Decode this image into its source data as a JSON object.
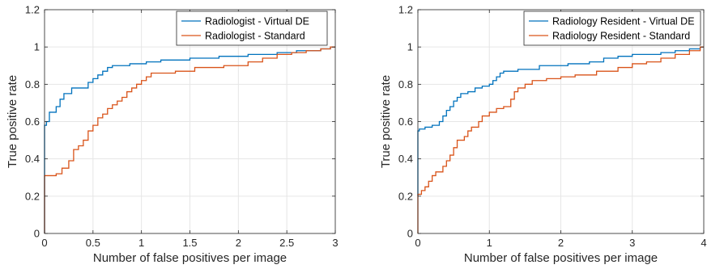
{
  "chart_data": [
    {
      "type": "line",
      "title": "",
      "xlabel": "Number of false positives per image",
      "ylabel": "True positive rate",
      "xlim": [
        0,
        3
      ],
      "ylim": [
        0,
        1.2
      ],
      "xticks": [
        "0",
        "0.5",
        "1",
        "1.5",
        "2",
        "2.5",
        "3"
      ],
      "yticks": [
        "0",
        "0.2",
        "0.4",
        "0.6",
        "0.8",
        "1",
        "1.2"
      ],
      "grid": true,
      "legend_position": "top-right",
      "series": [
        {
          "name": "Radiologist - Virtual DE",
          "color": "#0072BD",
          "points": [
            [
              0,
              0
            ],
            [
              0,
              0.58
            ],
            [
              0.02,
              0.58
            ],
            [
              0.02,
              0.6
            ],
            [
              0.05,
              0.6
            ],
            [
              0.05,
              0.65
            ],
            [
              0.12,
              0.65
            ],
            [
              0.12,
              0.68
            ],
            [
              0.16,
              0.68
            ],
            [
              0.16,
              0.72
            ],
            [
              0.2,
              0.72
            ],
            [
              0.2,
              0.75
            ],
            [
              0.28,
              0.75
            ],
            [
              0.28,
              0.78
            ],
            [
              0.45,
              0.78
            ],
            [
              0.45,
              0.81
            ],
            [
              0.5,
              0.81
            ],
            [
              0.5,
              0.83
            ],
            [
              0.55,
              0.83
            ],
            [
              0.55,
              0.85
            ],
            [
              0.6,
              0.85
            ],
            [
              0.6,
              0.87
            ],
            [
              0.65,
              0.87
            ],
            [
              0.65,
              0.89
            ],
            [
              0.7,
              0.89
            ],
            [
              0.7,
              0.9
            ],
            [
              0.88,
              0.9
            ],
            [
              0.88,
              0.91
            ],
            [
              1.05,
              0.91
            ],
            [
              1.05,
              0.92
            ],
            [
              1.2,
              0.92
            ],
            [
              1.2,
              0.93
            ],
            [
              1.5,
              0.93
            ],
            [
              1.5,
              0.94
            ],
            [
              1.8,
              0.94
            ],
            [
              1.8,
              0.95
            ],
            [
              2.1,
              0.95
            ],
            [
              2.1,
              0.96
            ],
            [
              2.4,
              0.96
            ],
            [
              2.4,
              0.97
            ],
            [
              2.6,
              0.97
            ],
            [
              2.6,
              0.98
            ],
            [
              2.85,
              0.98
            ],
            [
              2.85,
              0.99
            ],
            [
              2.95,
              0.99
            ],
            [
              2.95,
              1.0
            ],
            [
              3.0,
              1.0
            ]
          ]
        },
        {
          "name": "Radiologist - Standard",
          "color": "#D95319",
          "points": [
            [
              0,
              0
            ],
            [
              0,
              0.31
            ],
            [
              0.12,
              0.31
            ],
            [
              0.12,
              0.32
            ],
            [
              0.18,
              0.32
            ],
            [
              0.18,
              0.35
            ],
            [
              0.25,
              0.35
            ],
            [
              0.25,
              0.39
            ],
            [
              0.3,
              0.39
            ],
            [
              0.3,
              0.45
            ],
            [
              0.35,
              0.45
            ],
            [
              0.35,
              0.47
            ],
            [
              0.4,
              0.47
            ],
            [
              0.4,
              0.5
            ],
            [
              0.45,
              0.5
            ],
            [
              0.45,
              0.55
            ],
            [
              0.5,
              0.55
            ],
            [
              0.5,
              0.58
            ],
            [
              0.55,
              0.58
            ],
            [
              0.55,
              0.62
            ],
            [
              0.6,
              0.62
            ],
            [
              0.6,
              0.64
            ],
            [
              0.65,
              0.64
            ],
            [
              0.65,
              0.67
            ],
            [
              0.7,
              0.67
            ],
            [
              0.7,
              0.69
            ],
            [
              0.75,
              0.69
            ],
            [
              0.75,
              0.71
            ],
            [
              0.8,
              0.71
            ],
            [
              0.8,
              0.73
            ],
            [
              0.85,
              0.73
            ],
            [
              0.85,
              0.76
            ],
            [
              0.9,
              0.76
            ],
            [
              0.9,
              0.78
            ],
            [
              0.95,
              0.78
            ],
            [
              0.95,
              0.8
            ],
            [
              1.0,
              0.8
            ],
            [
              1.0,
              0.82
            ],
            [
              1.05,
              0.82
            ],
            [
              1.05,
              0.84
            ],
            [
              1.1,
              0.84
            ],
            [
              1.1,
              0.86
            ],
            [
              1.35,
              0.86
            ],
            [
              1.35,
              0.87
            ],
            [
              1.55,
              0.87
            ],
            [
              1.55,
              0.89
            ],
            [
              1.85,
              0.89
            ],
            [
              1.85,
              0.9
            ],
            [
              2.1,
              0.9
            ],
            [
              2.1,
              0.92
            ],
            [
              2.25,
              0.92
            ],
            [
              2.25,
              0.94
            ],
            [
              2.4,
              0.94
            ],
            [
              2.4,
              0.96
            ],
            [
              2.55,
              0.96
            ],
            [
              2.55,
              0.97
            ],
            [
              2.7,
              0.97
            ],
            [
              2.7,
              0.98
            ],
            [
              2.85,
              0.98
            ],
            [
              2.85,
              0.99
            ],
            [
              2.95,
              0.99
            ],
            [
              2.95,
              1.0
            ],
            [
              3.0,
              1.0
            ]
          ]
        }
      ]
    },
    {
      "type": "line",
      "title": "",
      "xlabel": "Number of false positives per image",
      "ylabel": "True positive rate",
      "xlim": [
        0,
        4
      ],
      "ylim": [
        0,
        1.2
      ],
      "xticks": [
        "0",
        "1",
        "2",
        "3",
        "4"
      ],
      "yticks": [
        "0",
        "0.2",
        "0.4",
        "0.6",
        "0.8",
        "1",
        "1.2"
      ],
      "grid": true,
      "legend_position": "top-right",
      "series": [
        {
          "name": "Radiology Resident - Virtual DE",
          "color": "#0072BD",
          "points": [
            [
              0,
              0.2
            ],
            [
              0,
              0.55
            ],
            [
              0.02,
              0.55
            ],
            [
              0.02,
              0.56
            ],
            [
              0.1,
              0.56
            ],
            [
              0.1,
              0.57
            ],
            [
              0.2,
              0.57
            ],
            [
              0.2,
              0.58
            ],
            [
              0.3,
              0.58
            ],
            [
              0.3,
              0.6
            ],
            [
              0.35,
              0.6
            ],
            [
              0.35,
              0.63
            ],
            [
              0.4,
              0.63
            ],
            [
              0.4,
              0.66
            ],
            [
              0.45,
              0.66
            ],
            [
              0.45,
              0.68
            ],
            [
              0.5,
              0.68
            ],
            [
              0.5,
              0.71
            ],
            [
              0.55,
              0.71
            ],
            [
              0.55,
              0.73
            ],
            [
              0.6,
              0.73
            ],
            [
              0.6,
              0.75
            ],
            [
              0.7,
              0.75
            ],
            [
              0.7,
              0.76
            ],
            [
              0.8,
              0.76
            ],
            [
              0.8,
              0.78
            ],
            [
              0.9,
              0.78
            ],
            [
              0.9,
              0.79
            ],
            [
              1.0,
              0.79
            ],
            [
              1.0,
              0.8
            ],
            [
              1.05,
              0.8
            ],
            [
              1.05,
              0.82
            ],
            [
              1.1,
              0.82
            ],
            [
              1.1,
              0.84
            ],
            [
              1.15,
              0.84
            ],
            [
              1.15,
              0.86
            ],
            [
              1.2,
              0.86
            ],
            [
              1.2,
              0.87
            ],
            [
              1.4,
              0.87
            ],
            [
              1.4,
              0.88
            ],
            [
              1.7,
              0.88
            ],
            [
              1.7,
              0.9
            ],
            [
              2.1,
              0.9
            ],
            [
              2.1,
              0.91
            ],
            [
              2.4,
              0.91
            ],
            [
              2.4,
              0.92
            ],
            [
              2.6,
              0.92
            ],
            [
              2.6,
              0.94
            ],
            [
              2.8,
              0.94
            ],
            [
              2.8,
              0.95
            ],
            [
              3.0,
              0.95
            ],
            [
              3.0,
              0.96
            ],
            [
              3.4,
              0.96
            ],
            [
              3.4,
              0.97
            ],
            [
              3.6,
              0.97
            ],
            [
              3.6,
              0.98
            ],
            [
              3.8,
              0.98
            ],
            [
              3.8,
              0.99
            ],
            [
              3.95,
              0.99
            ],
            [
              3.95,
              1.0
            ],
            [
              4.0,
              1.0
            ]
          ]
        },
        {
          "name": "Radiology Resident - Standard",
          "color": "#D95319",
          "points": [
            [
              0,
              0
            ],
            [
              0,
              0.21
            ],
            [
              0.05,
              0.21
            ],
            [
              0.05,
              0.23
            ],
            [
              0.1,
              0.23
            ],
            [
              0.1,
              0.25
            ],
            [
              0.15,
              0.25
            ],
            [
              0.15,
              0.28
            ],
            [
              0.2,
              0.28
            ],
            [
              0.2,
              0.31
            ],
            [
              0.25,
              0.31
            ],
            [
              0.25,
              0.33
            ],
            [
              0.35,
              0.33
            ],
            [
              0.35,
              0.36
            ],
            [
              0.4,
              0.36
            ],
            [
              0.4,
              0.39
            ],
            [
              0.45,
              0.39
            ],
            [
              0.45,
              0.42
            ],
            [
              0.5,
              0.42
            ],
            [
              0.5,
              0.46
            ],
            [
              0.55,
              0.46
            ],
            [
              0.55,
              0.5
            ],
            [
              0.65,
              0.5
            ],
            [
              0.65,
              0.52
            ],
            [
              0.7,
              0.52
            ],
            [
              0.7,
              0.55
            ],
            [
              0.75,
              0.55
            ],
            [
              0.75,
              0.57
            ],
            [
              0.85,
              0.57
            ],
            [
              0.85,
              0.6
            ],
            [
              0.9,
              0.6
            ],
            [
              0.9,
              0.63
            ],
            [
              1.0,
              0.63
            ],
            [
              1.0,
              0.65
            ],
            [
              1.1,
              0.65
            ],
            [
              1.1,
              0.67
            ],
            [
              1.2,
              0.67
            ],
            [
              1.2,
              0.68
            ],
            [
              1.3,
              0.68
            ],
            [
              1.3,
              0.72
            ],
            [
              1.35,
              0.72
            ],
            [
              1.35,
              0.76
            ],
            [
              1.4,
              0.76
            ],
            [
              1.4,
              0.78
            ],
            [
              1.5,
              0.78
            ],
            [
              1.5,
              0.8
            ],
            [
              1.6,
              0.8
            ],
            [
              1.6,
              0.82
            ],
            [
              1.8,
              0.82
            ],
            [
              1.8,
              0.83
            ],
            [
              2.0,
              0.83
            ],
            [
              2.0,
              0.84
            ],
            [
              2.2,
              0.84
            ],
            [
              2.2,
              0.85
            ],
            [
              2.5,
              0.85
            ],
            [
              2.5,
              0.87
            ],
            [
              2.8,
              0.87
            ],
            [
              2.8,
              0.89
            ],
            [
              3.0,
              0.89
            ],
            [
              3.0,
              0.91
            ],
            [
              3.2,
              0.91
            ],
            [
              3.2,
              0.92
            ],
            [
              3.4,
              0.92
            ],
            [
              3.4,
              0.94
            ],
            [
              3.6,
              0.94
            ],
            [
              3.6,
              0.96
            ],
            [
              3.8,
              0.96
            ],
            [
              3.8,
              0.98
            ],
            [
              3.95,
              0.98
            ],
            [
              3.95,
              1.0
            ],
            [
              4.0,
              1.0
            ]
          ]
        }
      ]
    }
  ]
}
